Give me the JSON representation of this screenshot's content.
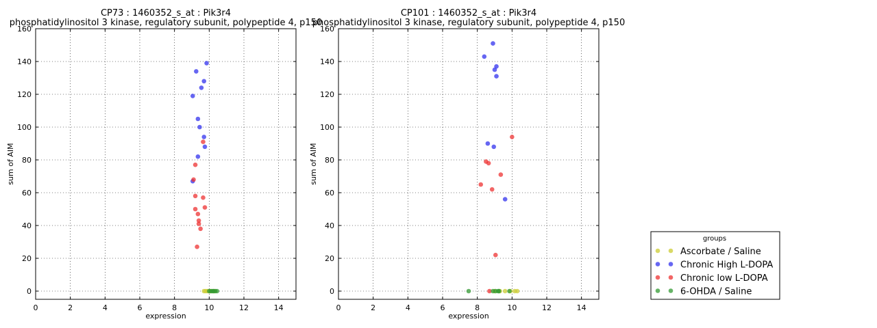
{
  "chart_data": [
    {
      "type": "scatter",
      "title": "CP73 : 1460352_s_at : Pik3r4",
      "subtitle": "phosphatidylinositol 3 kinase, regulatory subunit, polypeptide 4, p150",
      "xlabel": "expression",
      "ylabel": "sum of AIM",
      "xlim": [
        0,
        15
      ],
      "ylim": [
        -5,
        160
      ],
      "xticks": [
        "0",
        "2",
        "4",
        "6",
        "8",
        "10",
        "12",
        "14"
      ],
      "yticks": [
        "0",
        "20",
        "40",
        "60",
        "80",
        "100",
        "120",
        "140",
        "160"
      ],
      "grid": true,
      "series": [
        {
          "name": "Ascorbate / Saline",
          "color": "#cccc33",
          "points": [
            [
              9.7,
              0
            ],
            [
              9.8,
              0
            ],
            [
              9.9,
              0
            ],
            [
              10.0,
              0
            ],
            [
              10.1,
              0
            ],
            [
              10.3,
              0
            ]
          ]
        },
        {
          "name": "Chronic High L-DOPA",
          "color": "#3333ee",
          "points": [
            [
              9.85,
              139
            ],
            [
              9.25,
              134
            ],
            [
              9.7,
              128
            ],
            [
              9.55,
              124
            ],
            [
              9.05,
              119
            ],
            [
              9.35,
              105
            ],
            [
              9.45,
              100
            ],
            [
              9.7,
              94
            ],
            [
              9.75,
              88
            ],
            [
              9.35,
              82
            ],
            [
              9.05,
              67
            ]
          ]
        },
        {
          "name": "Chronic low L-DOPA",
          "color": "#ee3333",
          "points": [
            [
              9.65,
              91
            ],
            [
              9.2,
              77
            ],
            [
              9.1,
              68
            ],
            [
              9.2,
              58
            ],
            [
              9.65,
              57
            ],
            [
              9.75,
              51
            ],
            [
              9.2,
              50
            ],
            [
              9.35,
              47
            ],
            [
              9.4,
              43
            ],
            [
              9.4,
              41
            ],
            [
              9.5,
              38
            ],
            [
              9.3,
              27
            ]
          ]
        },
        {
          "name": "6-OHDA / Saline",
          "color": "#339933",
          "points": [
            [
              10.0,
              0
            ],
            [
              10.1,
              0
            ],
            [
              10.2,
              0
            ],
            [
              10.25,
              0
            ],
            [
              10.35,
              0
            ],
            [
              10.45,
              0
            ]
          ]
        }
      ]
    },
    {
      "type": "scatter",
      "title": "CP101 : 1460352_s_at : Pik3r4",
      "subtitle": "phosphatidylinositol 3 kinase, regulatory subunit, polypeptide 4, p150",
      "xlabel": "expression",
      "ylabel": "sum of AIM",
      "xlim": [
        0,
        15
      ],
      "ylim": [
        -5,
        160
      ],
      "xticks": [
        "0",
        "2",
        "4",
        "6",
        "8",
        "10",
        "12",
        "14"
      ],
      "yticks": [
        "0",
        "20",
        "40",
        "60",
        "80",
        "100",
        "120",
        "140",
        "160"
      ],
      "grid": true,
      "series": [
        {
          "name": "Ascorbate / Saline",
          "color": "#cccc33",
          "points": [
            [
              9.0,
              0
            ],
            [
              9.3,
              0
            ],
            [
              9.6,
              0
            ],
            [
              9.9,
              0
            ],
            [
              10.15,
              0
            ],
            [
              10.3,
              0
            ]
          ]
        },
        {
          "name": "Chronic High L-DOPA",
          "color": "#3333ee",
          "points": [
            [
              8.9,
              151
            ],
            [
              8.4,
              143
            ],
            [
              9.1,
              137
            ],
            [
              9.0,
              135
            ],
            [
              9.1,
              131
            ],
            [
              8.6,
              90
            ],
            [
              8.95,
              88
            ],
            [
              9.6,
              56
            ]
          ]
        },
        {
          "name": "Chronic low L-DOPA",
          "color": "#ee3333",
          "points": [
            [
              10.0,
              94
            ],
            [
              8.5,
              79
            ],
            [
              8.65,
              78
            ],
            [
              9.35,
              71
            ],
            [
              8.2,
              65
            ],
            [
              8.85,
              62
            ],
            [
              9.05,
              22
            ],
            [
              8.7,
              0
            ]
          ]
        },
        {
          "name": "6-OHDA / Saline",
          "color": "#339933",
          "points": [
            [
              7.5,
              0
            ],
            [
              8.9,
              0
            ],
            [
              9.05,
              0
            ],
            [
              9.2,
              0
            ],
            [
              9.25,
              0
            ],
            [
              9.85,
              0
            ]
          ]
        }
      ]
    }
  ],
  "legend": {
    "title": "groups",
    "placement": "lower-right",
    "entries": [
      {
        "label": "Ascorbate / Saline",
        "color": "#cccc33"
      },
      {
        "label": "Chronic High L-DOPA",
        "color": "#3333ee"
      },
      {
        "label": "Chronic low L-DOPA",
        "color": "#ee3333"
      },
      {
        "label": "6-OHDA / Saline",
        "color": "#339933"
      }
    ]
  }
}
